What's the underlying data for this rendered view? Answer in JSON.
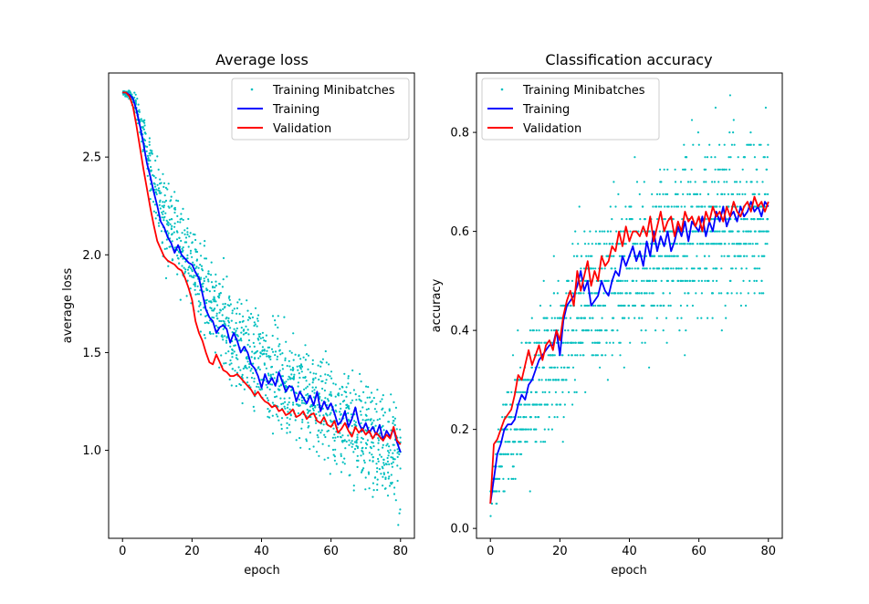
{
  "colors": {
    "minibatch": "#00bfbf",
    "training": "#0000ff",
    "validation": "#ff0000"
  },
  "chart_data": [
    {
      "type": "line",
      "title": "Average loss",
      "xlabel": "epoch",
      "ylabel": "average loss",
      "xlim": [
        -4,
        84
      ],
      "ylim": [
        0.55,
        2.93
      ],
      "xticks": [
        "0",
        "20",
        "40",
        "60",
        "80"
      ],
      "xtick_values": [
        0,
        20,
        40,
        60,
        80
      ],
      "yticks": [
        "1.0",
        "1.5",
        "2.0",
        "2.5"
      ],
      "ytick_values": [
        1.0,
        1.5,
        2.0,
        2.5
      ],
      "legend_position": "top-right",
      "series": [
        {
          "name": "Training Minibatches",
          "style": "scatter",
          "anchors_x": [
            0,
            2,
            4,
            6,
            8,
            10,
            12,
            15,
            20,
            25,
            30,
            40,
            50,
            60,
            70,
            80
          ],
          "anchors_y": [
            2.83,
            2.82,
            2.76,
            2.6,
            2.45,
            2.3,
            2.2,
            2.1,
            1.95,
            1.75,
            1.6,
            1.45,
            1.3,
            1.2,
            1.08,
            1.0
          ],
          "spread": [
            0.01,
            0.03,
            0.06,
            0.1,
            0.15,
            0.18,
            0.2,
            0.22,
            0.22,
            0.22,
            0.25,
            0.25,
            0.25,
            0.25,
            0.25,
            0.27
          ],
          "points_per_epoch": 18
        },
        {
          "name": "Training",
          "style": "line",
          "x": [
            0,
            1,
            2,
            3,
            4,
            5,
            6,
            7,
            8,
            9,
            10,
            11,
            12,
            13,
            14,
            15,
            16,
            17,
            18,
            19,
            20,
            21,
            22,
            23,
            24,
            25,
            26,
            27,
            28,
            29,
            30,
            31,
            32,
            33,
            34,
            35,
            36,
            37,
            38,
            39,
            40,
            41,
            42,
            43,
            44,
            45,
            46,
            47,
            48,
            49,
            50,
            51,
            52,
            53,
            54,
            55,
            56,
            57,
            58,
            59,
            60,
            61,
            62,
            63,
            64,
            65,
            66,
            67,
            68,
            69,
            70,
            71,
            72,
            73,
            74,
            75,
            76,
            77,
            78,
            79,
            80
          ],
          "y": [
            2.83,
            2.83,
            2.82,
            2.8,
            2.74,
            2.66,
            2.57,
            2.47,
            2.4,
            2.32,
            2.25,
            2.17,
            2.14,
            2.09,
            2.06,
            2.01,
            2.05,
            2.0,
            1.98,
            1.96,
            1.95,
            1.91,
            1.88,
            1.8,
            1.72,
            1.68,
            1.66,
            1.6,
            1.63,
            1.64,
            1.62,
            1.55,
            1.6,
            1.56,
            1.5,
            1.53,
            1.5,
            1.44,
            1.42,
            1.38,
            1.32,
            1.39,
            1.34,
            1.37,
            1.33,
            1.4,
            1.35,
            1.3,
            1.33,
            1.32,
            1.25,
            1.3,
            1.27,
            1.24,
            1.28,
            1.23,
            1.3,
            1.2,
            1.25,
            1.21,
            1.24,
            1.19,
            1.13,
            1.15,
            1.2,
            1.12,
            1.16,
            1.22,
            1.14,
            1.1,
            1.14,
            1.09,
            1.12,
            1.08,
            1.13,
            1.05,
            1.1,
            1.07,
            1.11,
            1.04,
            0.99
          ]
        },
        {
          "name": "Validation",
          "style": "line",
          "x": [
            0,
            1,
            2,
            3,
            4,
            5,
            6,
            7,
            8,
            9,
            10,
            11,
            12,
            13,
            14,
            15,
            16,
            17,
            18,
            19,
            20,
            21,
            22,
            23,
            24,
            25,
            26,
            27,
            28,
            29,
            30,
            31,
            32,
            33,
            34,
            35,
            36,
            37,
            38,
            39,
            40,
            41,
            42,
            43,
            44,
            45,
            46,
            47,
            48,
            49,
            50,
            51,
            52,
            53,
            54,
            55,
            56,
            57,
            58,
            59,
            60,
            61,
            62,
            63,
            64,
            65,
            66,
            67,
            68,
            69,
            70,
            71,
            72,
            73,
            74,
            75,
            76,
            77,
            78,
            79,
            80
          ],
          "y": [
            2.83,
            2.83,
            2.81,
            2.76,
            2.66,
            2.55,
            2.44,
            2.34,
            2.24,
            2.15,
            2.07,
            2.03,
            1.99,
            1.97,
            1.96,
            1.95,
            1.93,
            1.92,
            1.88,
            1.83,
            1.77,
            1.66,
            1.6,
            1.56,
            1.5,
            1.45,
            1.44,
            1.49,
            1.45,
            1.41,
            1.4,
            1.38,
            1.38,
            1.39,
            1.37,
            1.35,
            1.33,
            1.31,
            1.28,
            1.3,
            1.27,
            1.25,
            1.24,
            1.22,
            1.23,
            1.2,
            1.21,
            1.18,
            1.19,
            1.21,
            1.17,
            1.18,
            1.2,
            1.16,
            1.18,
            1.19,
            1.15,
            1.14,
            1.17,
            1.13,
            1.12,
            1.15,
            1.09,
            1.11,
            1.14,
            1.1,
            1.07,
            1.12,
            1.09,
            1.11,
            1.08,
            1.1,
            1.06,
            1.09,
            1.07,
            1.05,
            1.08,
            1.06,
            1.12,
            1.05,
            1.03
          ]
        }
      ]
    },
    {
      "type": "line",
      "title": "Classification accuracy",
      "xlabel": "epoch",
      "ylabel": "accuracy",
      "xlim": [
        -4,
        84
      ],
      "ylim": [
        -0.02,
        0.92
      ],
      "xticks": [
        "0",
        "20",
        "40",
        "60",
        "80"
      ],
      "xtick_values": [
        0,
        20,
        40,
        60,
        80
      ],
      "yticks": [
        "0.0",
        "0.2",
        "0.4",
        "0.6",
        "0.8"
      ],
      "ytick_values": [
        0.0,
        0.2,
        0.4,
        0.6,
        0.8
      ],
      "legend_position": "top-left",
      "series": [
        {
          "name": "Training Minibatches",
          "style": "scatter",
          "anchors_x": [
            0,
            2,
            4,
            6,
            8,
            10,
            15,
            20,
            25,
            30,
            40,
            50,
            60,
            70,
            80
          ],
          "anchors_y": [
            0.05,
            0.12,
            0.17,
            0.2,
            0.22,
            0.26,
            0.32,
            0.36,
            0.44,
            0.47,
            0.53,
            0.57,
            0.6,
            0.62,
            0.65
          ],
          "spread": [
            0.04,
            0.08,
            0.1,
            0.1,
            0.12,
            0.12,
            0.14,
            0.15,
            0.16,
            0.16,
            0.16,
            0.16,
            0.16,
            0.16,
            0.16
          ],
          "quantum": 0.025,
          "points_per_epoch": 18,
          "outliers": [
            {
              "x": 58,
              "y": 0.825
            },
            {
              "x": 69,
              "y": 0.875
            }
          ]
        },
        {
          "name": "Training",
          "style": "line",
          "x": [
            0,
            1,
            2,
            3,
            4,
            5,
            6,
            7,
            8,
            9,
            10,
            11,
            12,
            13,
            14,
            15,
            16,
            17,
            18,
            19,
            20,
            21,
            22,
            23,
            24,
            25,
            26,
            27,
            28,
            29,
            30,
            31,
            32,
            33,
            34,
            35,
            36,
            37,
            38,
            39,
            40,
            41,
            42,
            43,
            44,
            45,
            46,
            47,
            48,
            49,
            50,
            51,
            52,
            53,
            54,
            55,
            56,
            57,
            58,
            59,
            60,
            61,
            62,
            63,
            64,
            65,
            66,
            67,
            68,
            69,
            70,
            71,
            72,
            73,
            74,
            75,
            76,
            77,
            78,
            79,
            80
          ],
          "y": [
            0.05,
            0.1,
            0.15,
            0.17,
            0.2,
            0.21,
            0.21,
            0.22,
            0.25,
            0.27,
            0.26,
            0.29,
            0.3,
            0.32,
            0.34,
            0.35,
            0.36,
            0.37,
            0.37,
            0.4,
            0.35,
            0.42,
            0.45,
            0.46,
            0.47,
            0.49,
            0.52,
            0.48,
            0.5,
            0.45,
            0.46,
            0.47,
            0.5,
            0.48,
            0.47,
            0.5,
            0.52,
            0.51,
            0.55,
            0.53,
            0.55,
            0.57,
            0.54,
            0.56,
            0.53,
            0.58,
            0.55,
            0.6,
            0.56,
            0.59,
            0.57,
            0.6,
            0.56,
            0.58,
            0.61,
            0.59,
            0.62,
            0.58,
            0.62,
            0.61,
            0.6,
            0.63,
            0.59,
            0.62,
            0.6,
            0.64,
            0.62,
            0.65,
            0.61,
            0.63,
            0.64,
            0.62,
            0.65,
            0.63,
            0.64,
            0.66,
            0.64,
            0.65,
            0.63,
            0.66,
            0.65
          ]
        },
        {
          "name": "Validation",
          "style": "line",
          "x": [
            0,
            1,
            2,
            3,
            4,
            5,
            6,
            7,
            8,
            9,
            10,
            11,
            12,
            13,
            14,
            15,
            16,
            17,
            18,
            19,
            20,
            21,
            22,
            23,
            24,
            25,
            26,
            27,
            28,
            29,
            30,
            31,
            32,
            33,
            34,
            35,
            36,
            37,
            38,
            39,
            40,
            41,
            42,
            43,
            44,
            45,
            46,
            47,
            48,
            49,
            50,
            51,
            52,
            53,
            54,
            55,
            56,
            57,
            58,
            59,
            60,
            61,
            62,
            63,
            64,
            65,
            66,
            67,
            68,
            69,
            70,
            71,
            72,
            73,
            74,
            75,
            76,
            77,
            78,
            79,
            80
          ],
          "y": [
            0.05,
            0.17,
            0.18,
            0.2,
            0.22,
            0.23,
            0.24,
            0.27,
            0.31,
            0.3,
            0.33,
            0.36,
            0.33,
            0.35,
            0.37,
            0.34,
            0.37,
            0.38,
            0.36,
            0.4,
            0.38,
            0.43,
            0.46,
            0.48,
            0.45,
            0.52,
            0.48,
            0.51,
            0.54,
            0.49,
            0.52,
            0.5,
            0.55,
            0.53,
            0.54,
            0.57,
            0.56,
            0.6,
            0.57,
            0.61,
            0.58,
            0.6,
            0.6,
            0.59,
            0.61,
            0.59,
            0.63,
            0.58,
            0.61,
            0.64,
            0.6,
            0.62,
            0.63,
            0.59,
            0.62,
            0.6,
            0.64,
            0.62,
            0.63,
            0.61,
            0.63,
            0.6,
            0.64,
            0.62,
            0.65,
            0.63,
            0.64,
            0.62,
            0.65,
            0.63,
            0.66,
            0.64,
            0.63,
            0.65,
            0.66,
            0.64,
            0.67,
            0.65,
            0.66,
            0.64,
            0.66
          ]
        }
      ]
    }
  ]
}
